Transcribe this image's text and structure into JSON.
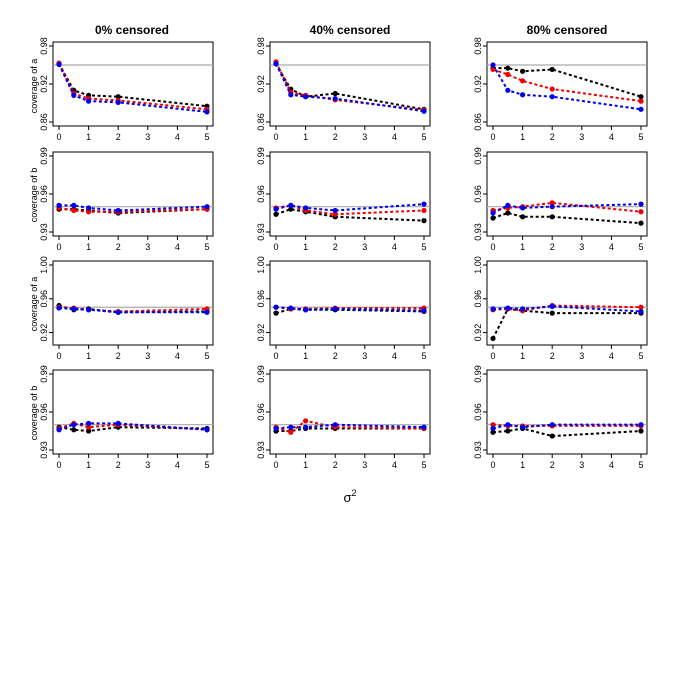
{
  "figure": {
    "column_titles": [
      "0% censored",
      "40% censored",
      "80% censored"
    ],
    "row_ylabels": [
      "coverage of a",
      "coverage of b",
      "coverage of a",
      "coverage of b"
    ],
    "xlabel_base": "σ",
    "xlabel_sup": "2"
  },
  "chart_data": [
    {
      "type": "line",
      "panel": "r0c0",
      "title": "0% censored",
      "ylabel": "coverage of a",
      "x": [
        0,
        0.5,
        1,
        2,
        5
      ],
      "xticks": [
        0,
        1,
        2,
        3,
        4,
        5
      ],
      "xlim": [
        0,
        5
      ],
      "ylim": [
        0.86,
        0.98
      ],
      "yticks": [
        "0.86",
        "0.92",
        "0.98"
      ],
      "reference": 0.95,
      "series": [
        {
          "name": "black",
          "color": "#000000",
          "values": [
            0.952,
            0.91,
            0.902,
            0.9,
            0.885
          ]
        },
        {
          "name": "red",
          "color": "#ee0000",
          "values": [
            0.953,
            0.905,
            0.897,
            0.894,
            0.88
          ]
        },
        {
          "name": "blue",
          "color": "#0000ee",
          "values": [
            0.951,
            0.902,
            0.893,
            0.891,
            0.876
          ]
        }
      ]
    },
    {
      "type": "line",
      "panel": "r0c1",
      "title": "40% censored",
      "ylabel": "",
      "x": [
        0,
        0.5,
        1,
        2,
        5
      ],
      "xticks": [
        0,
        1,
        2,
        3,
        4,
        5
      ],
      "xlim": [
        0,
        5
      ],
      "ylim": [
        0.86,
        0.98
      ],
      "yticks": [
        "0.86",
        "0.92",
        "0.98"
      ],
      "reference": 0.95,
      "series": [
        {
          "name": "black",
          "color": "#000000",
          "values": [
            0.952,
            0.912,
            0.9,
            0.905,
            0.88
          ]
        },
        {
          "name": "red",
          "color": "#ee0000",
          "values": [
            0.955,
            0.907,
            0.902,
            0.895,
            0.879
          ]
        },
        {
          "name": "blue",
          "color": "#0000ee",
          "values": [
            0.952,
            0.903,
            0.9,
            0.897,
            0.877
          ]
        }
      ]
    },
    {
      "type": "line",
      "panel": "r0c2",
      "title": "80% censored",
      "ylabel": "",
      "x": [
        0,
        0.5,
        1,
        2,
        5
      ],
      "xticks": [
        0,
        1,
        2,
        3,
        4,
        5
      ],
      "xlim": [
        0,
        5
      ],
      "ylim": [
        0.86,
        0.98
      ],
      "yticks": [
        "0.86",
        "0.92",
        "0.98"
      ],
      "reference": 0.95,
      "series": [
        {
          "name": "black",
          "color": "#000000",
          "values": [
            0.945,
            0.945,
            0.94,
            0.943,
            0.9
          ]
        },
        {
          "name": "red",
          "color": "#ee0000",
          "values": [
            0.943,
            0.935,
            0.925,
            0.912,
            0.893
          ]
        },
        {
          "name": "blue",
          "color": "#0000ee",
          "values": [
            0.95,
            0.91,
            0.903,
            0.9,
            0.88
          ]
        }
      ]
    },
    {
      "type": "line",
      "panel": "r1c0",
      "title": "",
      "ylabel": "coverage of b",
      "x": [
        0,
        0.5,
        1,
        2,
        5
      ],
      "xticks": [
        0,
        1,
        2,
        3,
        4,
        5
      ],
      "xlim": [
        0,
        5
      ],
      "ylim": [
        0.93,
        0.99
      ],
      "yticks": [
        "0.93",
        "0.96",
        "0.99"
      ],
      "reference": 0.95,
      "series": [
        {
          "name": "black",
          "color": "#000000",
          "values": [
            0.948,
            0.948,
            0.947,
            0.945,
            0.948
          ]
        },
        {
          "name": "red",
          "color": "#ee0000",
          "values": [
            0.949,
            0.947,
            0.946,
            0.946,
            0.948
          ]
        },
        {
          "name": "blue",
          "color": "#0000ee",
          "values": [
            0.951,
            0.951,
            0.949,
            0.947,
            0.95
          ]
        }
      ]
    },
    {
      "type": "line",
      "panel": "r1c1",
      "title": "",
      "ylabel": "",
      "x": [
        0,
        0.5,
        1,
        2,
        5
      ],
      "xticks": [
        0,
        1,
        2,
        3,
        4,
        5
      ],
      "xlim": [
        0,
        5
      ],
      "ylim": [
        0.93,
        0.99
      ],
      "yticks": [
        "0.93",
        "0.96",
        "0.99"
      ],
      "reference": 0.95,
      "series": [
        {
          "name": "black",
          "color": "#000000",
          "values": [
            0.944,
            0.948,
            0.946,
            0.942,
            0.939
          ]
        },
        {
          "name": "red",
          "color": "#ee0000",
          "values": [
            0.949,
            0.951,
            0.947,
            0.944,
            0.947
          ]
        },
        {
          "name": "blue",
          "color": "#0000ee",
          "values": [
            0.948,
            0.951,
            0.949,
            0.947,
            0.952
          ]
        }
      ]
    },
    {
      "type": "line",
      "panel": "r1c2",
      "title": "",
      "ylabel": "",
      "x": [
        0,
        0.5,
        1,
        2,
        5
      ],
      "xticks": [
        0,
        1,
        2,
        3,
        4,
        5
      ],
      "xlim": [
        0,
        5
      ],
      "ylim": [
        0.93,
        0.99
      ],
      "yticks": [
        "0.93",
        "0.96",
        "0.99"
      ],
      "reference": 0.95,
      "series": [
        {
          "name": "black",
          "color": "#000000",
          "values": [
            0.941,
            0.945,
            0.942,
            0.942,
            0.937
          ]
        },
        {
          "name": "red",
          "color": "#ee0000",
          "values": [
            0.947,
            0.949,
            0.95,
            0.953,
            0.946
          ]
        },
        {
          "name": "blue",
          "color": "#0000ee",
          "values": [
            0.945,
            0.951,
            0.949,
            0.95,
            0.952
          ]
        }
      ]
    },
    {
      "type": "line",
      "panel": "r2c0",
      "title": "",
      "ylabel": "coverage of a",
      "x": [
        0,
        0.5,
        1,
        2,
        5
      ],
      "xticks": [
        0,
        1,
        2,
        3,
        4,
        5
      ],
      "xlim": [
        0,
        5
      ],
      "ylim": [
        0.91,
        1.0
      ],
      "yticks": [
        "0.92",
        "0.96",
        "1.00"
      ],
      "reference": 0.95,
      "series": [
        {
          "name": "black",
          "color": "#000000",
          "values": [
            0.952,
            0.947,
            0.948,
            0.944,
            0.945
          ]
        },
        {
          "name": "red",
          "color": "#ee0000",
          "values": [
            0.95,
            0.949,
            0.947,
            0.945,
            0.948
          ]
        },
        {
          "name": "blue",
          "color": "#0000ee",
          "values": [
            0.949,
            0.948,
            0.947,
            0.944,
            0.944
          ]
        }
      ]
    },
    {
      "type": "line",
      "panel": "r2c1",
      "title": "",
      "ylabel": "",
      "x": [
        0,
        0.5,
        1,
        2,
        5
      ],
      "xticks": [
        0,
        1,
        2,
        3,
        4,
        5
      ],
      "xlim": [
        0,
        5
      ],
      "ylim": [
        0.91,
        1.0
      ],
      "yticks": [
        "0.92",
        "0.96",
        "1.00"
      ],
      "reference": 0.95,
      "series": [
        {
          "name": "black",
          "color": "#000000",
          "values": [
            0.943,
            0.948,
            0.947,
            0.947,
            0.945
          ]
        },
        {
          "name": "red",
          "color": "#ee0000",
          "values": [
            0.95,
            0.948,
            0.948,
            0.949,
            0.949
          ]
        },
        {
          "name": "blue",
          "color": "#0000ee",
          "values": [
            0.95,
            0.949,
            0.947,
            0.948,
            0.946
          ]
        }
      ]
    },
    {
      "type": "line",
      "panel": "r2c2",
      "title": "",
      "ylabel": "",
      "x": [
        0,
        0.5,
        1,
        2,
        5
      ],
      "xticks": [
        0,
        1,
        2,
        3,
        4,
        5
      ],
      "xlim": [
        0,
        5
      ],
      "ylim": [
        0.91,
        1.0
      ],
      "yticks": [
        "0.92",
        "0.96",
        "1.00"
      ],
      "reference": 0.95,
      "series": [
        {
          "name": "black",
          "color": "#000000",
          "values": [
            0.913,
            0.948,
            0.946,
            0.943,
            0.943
          ]
        },
        {
          "name": "red",
          "color": "#ee0000",
          "values": [
            0.947,
            0.948,
            0.946,
            0.952,
            0.95
          ]
        },
        {
          "name": "blue",
          "color": "#0000ee",
          "values": [
            0.948,
            0.949,
            0.948,
            0.951,
            0.945
          ]
        }
      ]
    },
    {
      "type": "line",
      "panel": "r3c0",
      "title": "",
      "ylabel": "coverage of b",
      "x": [
        0,
        0.5,
        1,
        2,
        5
      ],
      "xticks": [
        0,
        1,
        2,
        3,
        4,
        5
      ],
      "xlim": [
        0,
        5
      ],
      "ylim": [
        0.93,
        0.99
      ],
      "yticks": [
        "0.93",
        "0.96",
        "0.99"
      ],
      "reference": 0.95,
      "series": [
        {
          "name": "black",
          "color": "#000000",
          "values": [
            0.948,
            0.946,
            0.945,
            0.948,
            0.947
          ]
        },
        {
          "name": "red",
          "color": "#ee0000",
          "values": [
            0.947,
            0.951,
            0.948,
            0.95,
            0.946
          ]
        },
        {
          "name": "blue",
          "color": "#0000ee",
          "values": [
            0.946,
            0.95,
            0.951,
            0.951,
            0.946
          ]
        }
      ]
    },
    {
      "type": "line",
      "panel": "r3c1",
      "title": "",
      "ylabel": "",
      "x": [
        0,
        0.5,
        1,
        2,
        5
      ],
      "xticks": [
        0,
        1,
        2,
        3,
        4,
        5
      ],
      "xlim": [
        0,
        5
      ],
      "ylim": [
        0.93,
        0.99
      ],
      "yticks": [
        "0.93",
        "0.96",
        "0.99"
      ],
      "reference": 0.95,
      "series": [
        {
          "name": "black",
          "color": "#000000",
          "values": [
            0.945,
            0.945,
            0.947,
            0.947,
            0.947
          ]
        },
        {
          "name": "red",
          "color": "#ee0000",
          "values": [
            0.948,
            0.944,
            0.953,
            0.948,
            0.947
          ]
        },
        {
          "name": "blue",
          "color": "#0000ee",
          "values": [
            0.947,
            0.948,
            0.948,
            0.95,
            0.948
          ]
        }
      ]
    },
    {
      "type": "line",
      "panel": "r3c2",
      "title": "",
      "ylabel": "",
      "x": [
        0,
        0.5,
        1,
        2,
        5
      ],
      "xticks": [
        0,
        1,
        2,
        3,
        4,
        5
      ],
      "xlim": [
        0,
        5
      ],
      "ylim": [
        0.93,
        0.99
      ],
      "yticks": [
        "0.93",
        "0.96",
        "0.99"
      ],
      "reference": 0.95,
      "series": [
        {
          "name": "black",
          "color": "#000000",
          "values": [
            0.944,
            0.945,
            0.947,
            0.941,
            0.945
          ]
        },
        {
          "name": "red",
          "color": "#ee0000",
          "values": [
            0.95,
            0.949,
            0.949,
            0.949,
            0.949
          ]
        },
        {
          "name": "blue",
          "color": "#0000ee",
          "values": [
            0.947,
            0.95,
            0.948,
            0.95,
            0.95
          ]
        }
      ]
    }
  ]
}
